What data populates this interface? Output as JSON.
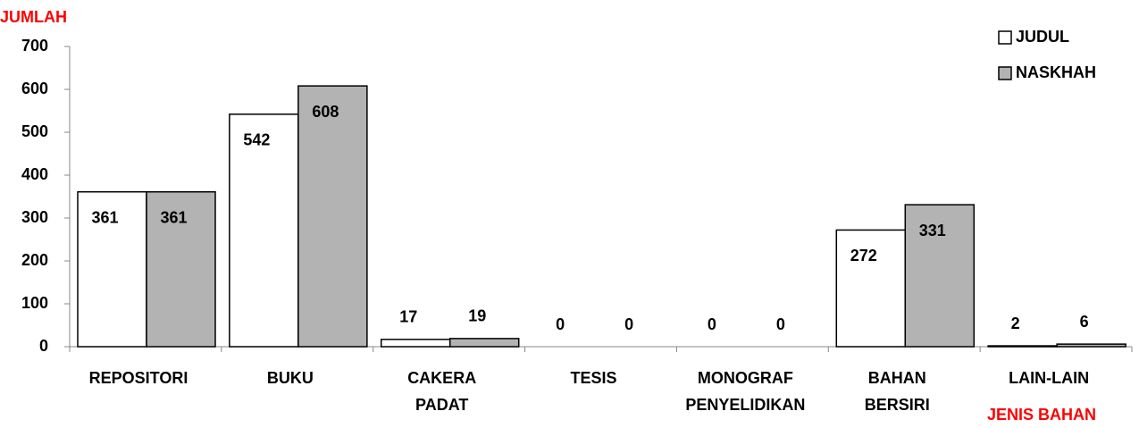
{
  "chart_data": {
    "type": "bar",
    "y_label": "JUMLAH",
    "x_label": "JENIS BAHAN",
    "categories": [
      "REPOSITORI",
      "BUKU",
      "CAKERA\nPADAT",
      "TESIS",
      "MONOGRAF\nPENYELIDIKAN",
      "BAHAN\nBERSIRI",
      "LAIN-LAIN"
    ],
    "series": [
      {
        "name": "JUDUL",
        "color": "#ffffff",
        "values": [
          361,
          542,
          17,
          0,
          0,
          272,
          2
        ]
      },
      {
        "name": "NASKHAH",
        "color": "#b3b3b3",
        "values": [
          361,
          608,
          19,
          0,
          0,
          331,
          6
        ]
      }
    ],
    "ylim": [
      0,
      700
    ],
    "yticks": [
      0,
      100,
      200,
      300,
      400,
      500,
      600,
      700
    ],
    "grid": false,
    "legend": "top-right"
  }
}
